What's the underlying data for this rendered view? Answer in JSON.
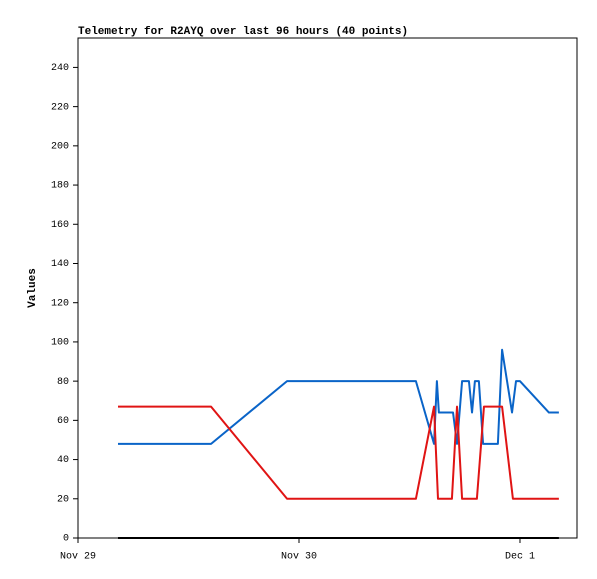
{
  "chart_data": {
    "type": "line",
    "title": "Telemetry for R2AYQ over last 96 hours (40 points)",
    "ylabel": "Values",
    "xlim": [
      0,
      2.258
    ],
    "ylim": [
      0,
      255
    ],
    "xticks": [
      {
        "value": 0,
        "label": "Nov 29"
      },
      {
        "value": 1,
        "label": "Nov 30"
      },
      {
        "value": 2,
        "label": "Dec 1"
      }
    ],
    "yticks": [
      0,
      20,
      40,
      60,
      80,
      100,
      120,
      140,
      160,
      180,
      200,
      220,
      240
    ],
    "grid": false,
    "series": [
      {
        "color": "#0a64c8",
        "x": [
          0.181,
          0.602,
          0.946,
          1.529,
          1.611,
          1.624,
          1.633,
          1.697,
          1.715,
          1.738,
          1.769,
          1.783,
          1.796,
          1.814,
          1.833,
          1.9,
          1.919,
          1.964,
          1.982,
          2.0,
          2.131,
          2.176
        ],
        "values": [
          48,
          48,
          80,
          80,
          48,
          80,
          64,
          64,
          48,
          80,
          80,
          64,
          80,
          80,
          48,
          48,
          96,
          64,
          80,
          80,
          64,
          64
        ]
      },
      {
        "color": "#e01414",
        "x": [
          0.181,
          0.602,
          0.946,
          1.529,
          1.611,
          1.629,
          1.692,
          1.715,
          1.738,
          1.805,
          1.837,
          1.919,
          1.968,
          2.176
        ],
        "values": [
          67,
          67,
          20,
          20,
          67,
          20,
          20,
          67,
          20,
          20,
          67,
          67,
          20,
          20
        ]
      },
      {
        "color": "#000000",
        "x": [
          0.181,
          2.176
        ],
        "values": [
          0,
          0
        ]
      }
    ]
  }
}
